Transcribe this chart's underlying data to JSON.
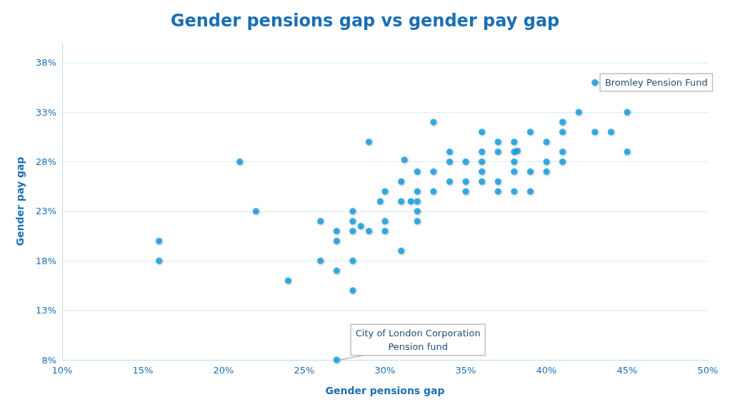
{
  "chart_data": {
    "type": "scatter",
    "title": "Gender pensions gap vs gender pay gap",
    "xlabel": "Gender pensions gap",
    "ylabel": "Gender pay gap",
    "x": [
      16,
      16,
      21,
      22,
      24,
      26,
      26,
      27,
      27,
      27,
      27,
      28,
      28,
      28,
      28,
      28,
      28.5,
      29,
      29,
      30,
      30,
      30,
      29.7,
      31.2,
      31,
      31,
      31,
      31.6,
      32,
      32,
      32,
      32,
      32,
      33,
      33,
      33,
      34,
      34,
      34,
      35,
      35,
      35,
      36,
      36,
      36,
      36,
      36,
      37,
      37,
      37,
      37,
      38,
      38,
      38,
      38,
      38,
      38.2,
      39,
      39,
      39,
      40,
      40,
      40,
      41,
      41,
      41,
      41,
      42,
      43,
      43,
      44,
      45,
      45
    ],
    "values": [
      20,
      18,
      28,
      23,
      16,
      22,
      18,
      21,
      20,
      17,
      8,
      23,
      22,
      21,
      18,
      15,
      21.5,
      21,
      30,
      25,
      22,
      21,
      24,
      28.2,
      26,
      24,
      19,
      24,
      24,
      27,
      25,
      23,
      22,
      32,
      27,
      25,
      29,
      28,
      26,
      28,
      26,
      25,
      31,
      29,
      28,
      27,
      26,
      30,
      29,
      26,
      25,
      30,
      29,
      28,
      27,
      25,
      29.1,
      31,
      27,
      25,
      30,
      28,
      27,
      32,
      31,
      29,
      28,
      33,
      36,
      31,
      31,
      33,
      29
    ],
    "color": "#0a9be0",
    "marker": "circle",
    "grid": "y",
    "xlim": [
      10,
      50
    ],
    "xticks": [
      {
        "value": 10,
        "label": "10%"
      },
      {
        "value": 15,
        "label": "15%"
      },
      {
        "value": 20,
        "label": "20%"
      },
      {
        "value": 25,
        "label": "25%"
      },
      {
        "value": 30,
        "label": "30%"
      },
      {
        "value": 35,
        "label": "35%"
      },
      {
        "value": 40,
        "label": "40%"
      },
      {
        "value": 45,
        "label": "45%"
      },
      {
        "value": 50,
        "label": "50%"
      }
    ],
    "ylim": [
      8,
      40
    ],
    "yticks": [
      {
        "value": 8,
        "label": "8%"
      },
      {
        "value": 13,
        "label": "13%"
      },
      {
        "value": 18,
        "label": "18%"
      },
      {
        "value": 23,
        "label": "23%"
      },
      {
        "value": 28,
        "label": "28%"
      },
      {
        "value": 33,
        "label": "33%"
      },
      {
        "value": 38,
        "label": "38%"
      }
    ],
    "annotations": [
      {
        "text": "Bromley Pension Fund",
        "x": 43,
        "y": 36
      },
      {
        "text": "City of London Corporation\nPension fund",
        "x": 27,
        "y": 8
      }
    ]
  }
}
